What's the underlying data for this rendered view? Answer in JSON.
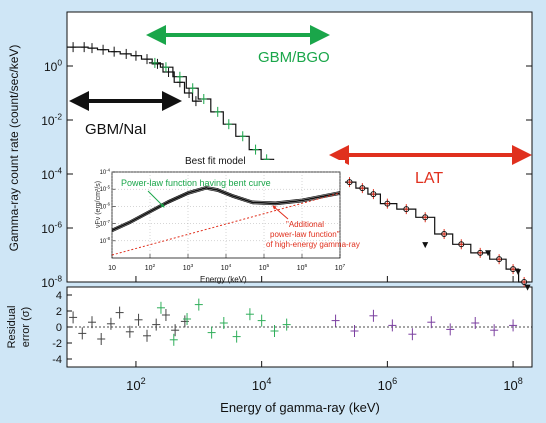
{
  "figure": {
    "ylabel_main": "Gamma-ray count rate (count/sec/keV)",
    "ylabel_resid_1": "Residual",
    "ylabel_resid_2": "error (σ)",
    "xlabel": "Energy of gamma-ray (keV)"
  },
  "instruments": {
    "bgo": {
      "label": "GBM/BGO",
      "color": "#1aa64a"
    },
    "nai": {
      "label": "GBM/NaI",
      "color": "#111111"
    },
    "lat": {
      "label": "LAT",
      "color": "#e0301e"
    }
  },
  "inset": {
    "title": "Best fit model",
    "xlabel": "Energy (keV)",
    "ylabel": "νFν (erg/cm²/s)",
    "anno_bent": "Power-law function having bent curve",
    "anno_add_1": "\"Additional",
    "anno_add_2": "power-law function\"",
    "anno_add_3": "of high-energy gamma-ray",
    "colors": {
      "bent": "#1aa64a",
      "additional": "#e0301e"
    }
  },
  "chart_data": [
    {
      "type": "line",
      "name": "main-spectrum",
      "xscale": "log",
      "yscale": "log",
      "xlim": [
        8,
        200000000
      ],
      "ylim": [
        1e-08,
        100
      ],
      "xticks": [
        {
          "v": 100,
          "base": "10",
          "exp": "2"
        },
        {
          "v": 10000,
          "base": "10",
          "exp": "4"
        },
        {
          "v": 1000000,
          "base": "10",
          "exp": "6"
        },
        {
          "v": 100000000,
          "base": "10",
          "exp": "8"
        }
      ],
      "yticks": [
        {
          "v": 1,
          "base": "10",
          "exp": "0"
        },
        {
          "v": 0.01,
          "base": "10",
          "exp": "-2"
        },
        {
          "v": 0.0001,
          "base": "10",
          "exp": "-4"
        },
        {
          "v": 1e-06,
          "base": "10",
          "exp": "-6"
        },
        {
          "v": 1e-08,
          "base": "10",
          "exp": "-8"
        }
      ],
      "series": [
        {
          "instrument": "nai",
          "color": "#111111",
          "x": [
            10,
            15,
            20,
            30,
            45,
            70,
            100,
            150,
            220,
            330,
            500,
            700,
            900
          ],
          "y": [
            5,
            5,
            4.6,
            4,
            3.4,
            2.8,
            2.4,
            1.8,
            1.2,
            0.6,
            0.25,
            0.1,
            0.05
          ]
        },
        {
          "instrument": "bgo",
          "color": "#1aa64a",
          "x": [
            200,
            300,
            500,
            800,
            1200,
            2000,
            3000,
            5000,
            8000,
            12000,
            20000,
            30000
          ],
          "y": [
            1.3,
            0.9,
            0.4,
            0.15,
            0.06,
            0.02,
            0.007,
            0.0025,
            0.0008,
            0.00035,
            0.00018,
            0.00012
          ]
        },
        {
          "instrument": "lat",
          "color": "#e0301e",
          "x": [
            150000,
            250000,
            400000,
            600000,
            1000000,
            2000000,
            4000000,
            8000000,
            15000000,
            30000000,
            60000000,
            100000000,
            150000000
          ],
          "y": [
            9e-05,
            5e-05,
            3e-05,
            1.8e-05,
            8e-06,
            5e-06,
            2.5e-06,
            6e-07,
            2.5e-07,
            1.2e-07,
            7e-08,
            3e-08,
            1e-08
          ]
        }
      ],
      "upper_limits": [
        {
          "x": 4000000,
          "y": 3e-07
        },
        {
          "x": 40000000,
          "y": 1.5e-07
        },
        {
          "x": 120000000,
          "y": 3e-08
        },
        {
          "x": 170000000,
          "y": 8e-09
        }
      ]
    },
    {
      "type": "line",
      "name": "best-fit-model-inset",
      "xscale": "log",
      "yscale": "log",
      "xlim": [
        10,
        10000000
      ],
      "ylim": [
        1e-09,
        0.0001
      ],
      "xticks": [
        {
          "v": 10,
          "base": "10",
          "exp": ""
        },
        {
          "v": 100,
          "base": "10",
          "exp": "2"
        },
        {
          "v": 1000,
          "base": "10",
          "exp": "3"
        },
        {
          "v": 10000,
          "base": "10",
          "exp": "4"
        },
        {
          "v": 100000,
          "base": "10",
          "exp": "5"
        },
        {
          "v": 1000000,
          "base": "10",
          "exp": "6"
        },
        {
          "v": 10000000,
          "base": "10",
          "exp": "7"
        }
      ],
      "yticks": [
        {
          "v": 0.0001,
          "base": "10",
          "exp": "-4"
        },
        {
          "v": 1e-05,
          "base": "10",
          "exp": "-5"
        },
        {
          "v": 1e-06,
          "base": "10",
          "exp": "-6"
        },
        {
          "v": 1e-07,
          "base": "10",
          "exp": "-7"
        },
        {
          "v": 1e-08,
          "base": "10",
          "exp": "-8"
        }
      ],
      "series": [
        {
          "component": "total",
          "color": "#111111",
          "x": [
            10,
            30,
            100,
            300,
            1000,
            3000,
            6000,
            15000,
            50000,
            200000,
            1000000,
            5000000,
            10000000
          ],
          "y": [
            4e-08,
            1.2e-07,
            5e-07,
            1.8e-06,
            6e-06,
            1.2e-05,
            9e-06,
            4e-06,
            1.7e-06,
            1.5e-06,
            2.2e-06,
            4.5e-06,
            6e-06
          ]
        },
        {
          "component": "additional-power-law",
          "color": "#e0301e",
          "x": [
            10,
            10000000
          ],
          "y": [
            1.5e-09,
            6e-06
          ]
        }
      ]
    },
    {
      "type": "scatter",
      "name": "residuals",
      "xscale": "log",
      "xlim": [
        8,
        200000000
      ],
      "ylim": [
        -5,
        5
      ],
      "yticks": [
        4,
        2,
        0,
        -2,
        -4
      ],
      "ylabel": "Residual error (σ)",
      "series": [
        {
          "instrument": "nai",
          "color": "#444444",
          "x": [
            10,
            14,
            20,
            28,
            40,
            55,
            80,
            110,
            150,
            210,
            300,
            420,
            600
          ],
          "y": [
            1.2,
            -0.8,
            0.6,
            -1.5,
            0.4,
            1.8,
            -0.6,
            0.9,
            -1.1,
            0.3,
            1.5,
            -0.4,
            0.7
          ]
        },
        {
          "instrument": "bgo",
          "color": "#2fae5a",
          "x": [
            250,
            400,
            650,
            1000,
            1600,
            2500,
            4000,
            6500,
            10000,
            16000,
            25000
          ],
          "y": [
            2.4,
            -1.6,
            1.0,
            2.8,
            -0.7,
            0.5,
            -1.2,
            1.6,
            0.8,
            -0.5,
            0.3
          ]
        },
        {
          "instrument": "lat",
          "color": "#7b3fa0",
          "x": [
            150000,
            300000,
            600000,
            1200000,
            2500000,
            5000000,
            10000000,
            25000000,
            50000000,
            100000000
          ],
          "y": [
            0.8,
            -0.5,
            1.4,
            0.2,
            -0.9,
            0.6,
            -0.3,
            0.5,
            -0.4,
            0.2
          ]
        }
      ]
    }
  ]
}
